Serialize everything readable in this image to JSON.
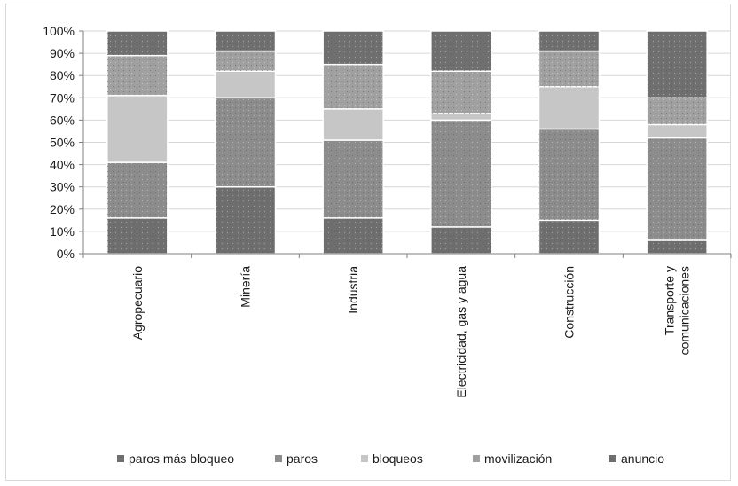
{
  "chart_data": {
    "type": "bar",
    "stacked": true,
    "normalized": true,
    "title": "",
    "xlabel": "",
    "ylabel": "",
    "ylim": [
      0,
      100
    ],
    "y_ticks": [
      "0%",
      "10%",
      "20%",
      "30%",
      "40%",
      "50%",
      "60%",
      "70%",
      "80%",
      "90%",
      "100%"
    ],
    "grid": true,
    "legend_position": "bottom",
    "categories": [
      "Agropecuario",
      "Minería",
      "Industria",
      "Electricidad, gas y agua",
      "Construcción",
      "Transporte y comunicaciones"
    ],
    "series": [
      {
        "name": "paros más bloqueo",
        "color": "#6e6e6e",
        "values": [
          16,
          30,
          16,
          12,
          15,
          6
        ]
      },
      {
        "name": "paros",
        "color": "#8c8c8c",
        "values": [
          25,
          40,
          35,
          48,
          41,
          46
        ]
      },
      {
        "name": "bloqueos",
        "color": "#c6c6c6",
        "values": [
          30,
          12,
          14,
          3,
          19,
          6
        ]
      },
      {
        "name": "movilización",
        "color": "#a0a0a0",
        "values": [
          18,
          9,
          20,
          19,
          16,
          12
        ]
      },
      {
        "name": "anuncio",
        "color": "#6f6f6f",
        "values": [
          11,
          9,
          15,
          18,
          9,
          30
        ]
      }
    ]
  }
}
